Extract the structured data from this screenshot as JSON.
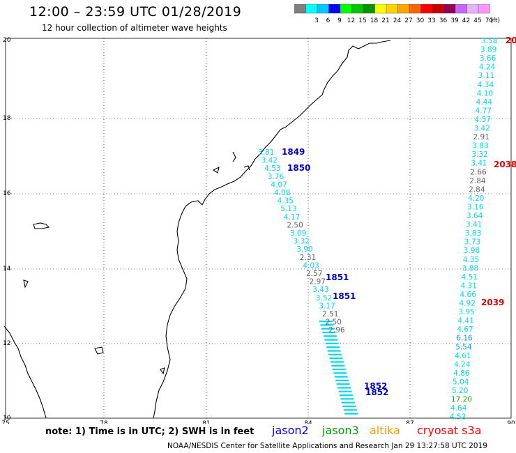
{
  "header": {
    "title": "12:00 – 23:59 UTC 01/28/2019",
    "subtitle": "12 hour collection of altimeter wave heights"
  },
  "color_scale": {
    "unit": "(ft)",
    "bins": [
      {
        "label": "",
        "color": "#7f7f7f"
      },
      {
        "label": "3",
        "color": "#00ffff"
      },
      {
        "label": "6",
        "color": "#00c8ff"
      },
      {
        "label": "9",
        "color": "#0000ff"
      },
      {
        "label": "12",
        "color": "#00ff00"
      },
      {
        "label": "15",
        "color": "#00c800"
      },
      {
        "label": "18",
        "color": "#009600"
      },
      {
        "label": "21",
        "color": "#ffff00"
      },
      {
        "label": "24",
        "color": "#ffd200"
      },
      {
        "label": "27",
        "color": "#ffa500"
      },
      {
        "label": "30",
        "color": "#ff6400"
      },
      {
        "label": "33",
        "color": "#ff0000"
      },
      {
        "label": "36",
        "color": "#c80000"
      },
      {
        "label": "39",
        "color": "#960050"
      },
      {
        "label": "42",
        "color": "#c864ff"
      },
      {
        "label": "45",
        "color": "#e6b4ff"
      },
      {
        "label": "70",
        "color": "#ff96ff"
      }
    ]
  },
  "axes": {
    "lon_labels": [
      "75",
      "78",
      "81",
      "84",
      "87",
      "90"
    ],
    "lat_labels": [
      "20",
      "18",
      "16",
      "14",
      "12",
      "10"
    ]
  },
  "tracks": {
    "left_track": {
      "values": [
        "3.81",
        "3.42",
        "4.53",
        "3.76",
        "4.07",
        "4.08",
        "4.35",
        "5.13",
        "4.17",
        "2.50",
        "3.09",
        "3.32",
        "3.90",
        "2.31",
        "4.03",
        "2.57",
        "2.97",
        "3.43",
        "3.52",
        "3.17",
        "2.51",
        "2.50",
        "2.96"
      ],
      "colors": [
        "#00d8e8",
        "#00d8e8",
        "#00d8e8",
        "#00d8e8",
        "#00d8e8",
        "#00d8e8",
        "#00d8e8",
        "#00d8e8",
        "#00d8e8",
        "#666666",
        "#00d8e8",
        "#00d8e8",
        "#00d8e8",
        "#666666",
        "#00d8e8",
        "#666666",
        "#666666",
        "#00d8e8",
        "#00d8e8",
        "#00d8e8",
        "#666666",
        "#666666",
        "#666666"
      ]
    },
    "right_track": {
      "values": [
        "3.58",
        "3.89",
        "3.66",
        "4.24",
        "3.11",
        "4.34",
        "4.10",
        "4.44",
        "4.77",
        "4.57",
        "3.42",
        "2.91",
        "3.83",
        "3.32",
        "3.41",
        "2.66",
        "2.84",
        "2.84",
        "4.20",
        "3.16",
        "3.64",
        "3.41",
        "3.83",
        "3.73",
        "3.98",
        "4.35",
        "3.88",
        "4.51",
        "4.31",
        "4.66",
        "4.92",
        "3.95",
        "4.41",
        "4.67",
        "6.16",
        "5.54",
        "4.61",
        "4.24",
        "4.86",
        "5.04",
        "5.20",
        "17.20",
        "4.64",
        "4.52"
      ],
      "colors": [
        "#00d8e8",
        "#00d8e8",
        "#00d8e8",
        "#00d8e8",
        "#00d8e8",
        "#00d8e8",
        "#00d8e8",
        "#00d8e8",
        "#00d8e8",
        "#00d8e8",
        "#00d8e8",
        "#666666",
        "#00d8e8",
        "#00d8e8",
        "#00d8e8",
        "#666666",
        "#666666",
        "#666666",
        "#00d8e8",
        "#00d8e8",
        "#00d8e8",
        "#00d8e8",
        "#00d8e8",
        "#00d8e8",
        "#00d8e8",
        "#00d8e8",
        "#00d8e8",
        "#00d8e8",
        "#00d8e8",
        "#00d8e8",
        "#00d8e8",
        "#00d8e8",
        "#00d8e8",
        "#00d8e8",
        "#00a0ff",
        "#00a0ff",
        "#00d8e8",
        "#00d8e8",
        "#00d8e8",
        "#00d8e8",
        "#00d8e8",
        "#22a022",
        "#00d8e8",
        "#00d8e8"
      ]
    },
    "time_labels": [
      {
        "text": "1849",
        "color": "#0000cc"
      },
      {
        "text": "1850",
        "color": "#0000cc"
      },
      {
        "text": "1851",
        "color": "#0000cc"
      },
      {
        "text": "1851",
        "color": "#0000cc"
      },
      {
        "text": "1852",
        "color": "#0000cc"
      },
      {
        "text": "1852",
        "color": "#0000cc"
      },
      {
        "text": "20",
        "color": "#e00000"
      },
      {
        "text": "2038",
        "color": "#e00000"
      },
      {
        "text": "2039",
        "color": "#e00000"
      }
    ]
  },
  "footer": {
    "note": "note: 1) Time is in UTC; 2) SWH is in feet",
    "satellites": [
      {
        "name": "jason2",
        "color": "#0000ff"
      },
      {
        "name": "jason3",
        "color": "#00a000"
      },
      {
        "name": "altika",
        "color": "#ff9900"
      },
      {
        "name": "cryosat s3a",
        "color": "#ff0000"
      }
    ],
    "credit": "NOAA/NESDIS Center for Satellite Applications and Research    Jan 29 13:27:58 UTC 2019"
  }
}
